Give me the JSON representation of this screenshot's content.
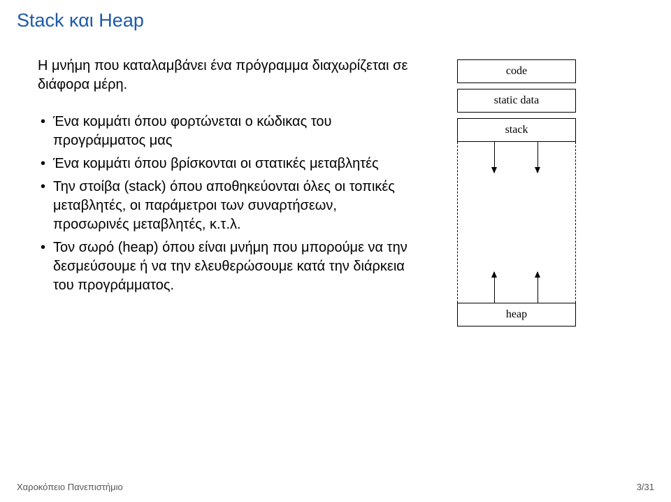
{
  "title_color": "#1e5aa8",
  "title": "Stack και Heap",
  "intro": "Η μνήμη που καταλαμβάνει ένα πρόγραμμα διαχωρίζεται σε διάφορα μέρη.",
  "bullets": [
    "Ένα κομμάτι όπου φορτώνεται ο κώδικας του προγράμματος μας",
    "Ένα κομμάτι όπου βρίσκονται οι στατικές μεταβλητές",
    "Την στοίβα (stack) όπου αποθηκεύονται όλες οι τοπικές μεταβλητές, οι παράμετροι των συναρτήσεων, προσωρινές μεταβλητές, κ.τ.λ.",
    "Τον σωρό (heap) όπου είναι μνήμη που μπορούμε να την δεσμεύσουμε ή να την ελευθερώσουμε κατά την διάρκεια του προγράμματος."
  ],
  "segments": {
    "code": "code",
    "static": "static data",
    "stack": "stack",
    "heap": "heap"
  },
  "footer": {
    "left": "Χαροκόπειο Πανεπιστήμιο",
    "page": "3/31"
  }
}
